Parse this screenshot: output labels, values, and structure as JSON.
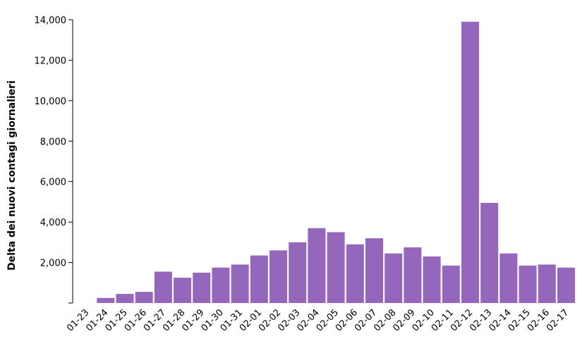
{
  "chart_data": {
    "type": "bar",
    "title": "",
    "xlabel": "",
    "ylabel": "Delta dei nuovi contagi giornalieri",
    "ylim": [
      0,
      14000
    ],
    "yticks": [
      2000,
      4000,
      6000,
      8000,
      10000,
      12000,
      14000
    ],
    "ytick_labels": [
      "2,000",
      "4,000",
      "6,000",
      "8,000",
      "10,000",
      "12,000",
      "14,000"
    ],
    "grid": false,
    "bar_color": "#9467bd",
    "categories": [
      "01-23",
      "01-24",
      "01-25",
      "01-26",
      "01-27",
      "01-28",
      "01-29",
      "01-30",
      "01-31",
      "02-01",
      "02-02",
      "02-03",
      "02-04",
      "02-05",
      "02-06",
      "02-07",
      "02-08",
      "02-09",
      "02-10",
      "02-11",
      "02-12",
      "02-13",
      "02-14",
      "02-15",
      "02-16",
      "02-17"
    ],
    "values": [
      0,
      250,
      450,
      550,
      1550,
      1250,
      1500,
      1750,
      1900,
      2350,
      2600,
      3000,
      3700,
      3500,
      2900,
      3200,
      2450,
      2750,
      2300,
      1850,
      13900,
      4950,
      2450,
      1850,
      1900,
      1750
    ]
  }
}
